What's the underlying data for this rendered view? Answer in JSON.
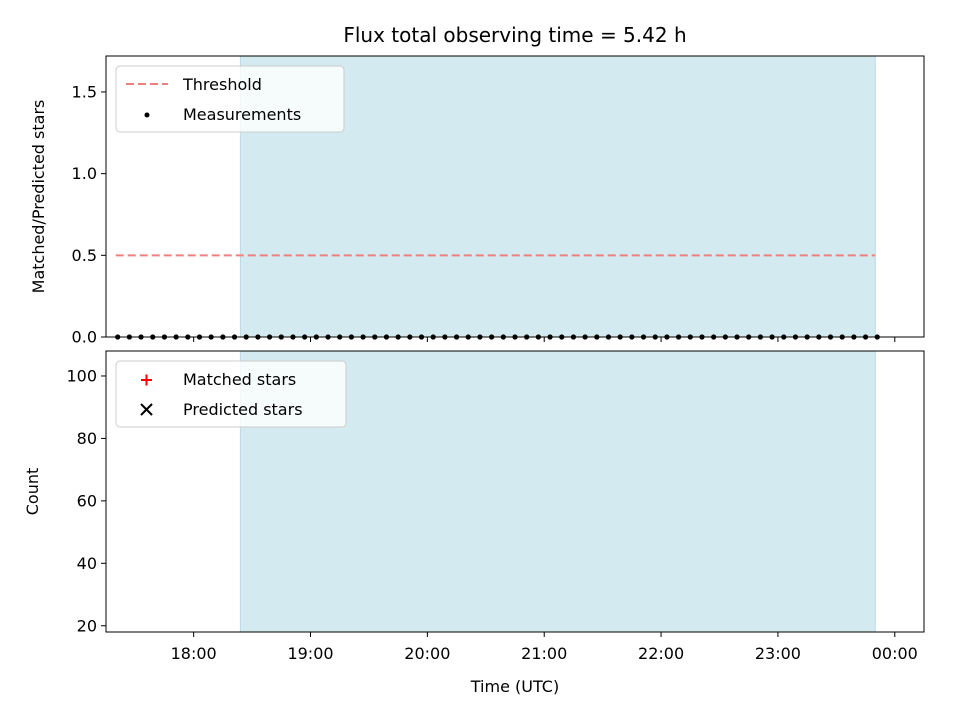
{
  "chart_data": [
    {
      "type": "scatter",
      "title": "Flux total observing time = 5.42 h",
      "xlabel": "",
      "ylabel": "Matched/Predicted stars",
      "xlim": [
        "17:15",
        "00:15"
      ],
      "ylim": [
        0,
        1.72
      ],
      "yticks": [
        "0.0",
        "0.5",
        "1.0",
        "1.5"
      ],
      "grid": false,
      "legend": "top-left",
      "observing_window": [
        "18:24",
        "23:50"
      ],
      "observing_window_color": "#d3eaf0",
      "threshold": {
        "name": "Threshold",
        "value": 0.5,
        "x_range": [
          "17:20",
          "23:50"
        ],
        "color": "#f08080",
        "style": "dashed"
      },
      "series": [
        {
          "name": "Measurements",
          "color": "#000000",
          "marker": "dot",
          "x": [
            "17:21",
            "17:27",
            "17:33",
            "17:39",
            "17:45",
            "17:51",
            "17:57",
            "18:03",
            "18:09",
            "18:15",
            "18:21",
            "18:27",
            "18:33",
            "18:39",
            "18:45",
            "18:51",
            "18:57",
            "19:03",
            "19:09",
            "19:15",
            "19:21",
            "19:27",
            "19:33",
            "19:39",
            "19:45",
            "19:51",
            "19:57",
            "20:03",
            "20:09",
            "20:15",
            "20:21",
            "20:27",
            "20:33",
            "20:39",
            "20:45",
            "20:51",
            "20:57",
            "21:03",
            "21:09",
            "21:15",
            "21:21",
            "21:27",
            "21:33",
            "21:39",
            "21:45",
            "21:51",
            "21:57",
            "22:03",
            "22:09",
            "22:15",
            "22:21",
            "22:27",
            "22:33",
            "22:39",
            "22:45",
            "22:51",
            "22:57",
            "23:03",
            "23:09",
            "23:15",
            "23:21",
            "23:27",
            "23:33",
            "23:39",
            "23:45",
            "23:51"
          ],
          "y": [
            0,
            0,
            0,
            0,
            0,
            0,
            0,
            0,
            0,
            0,
            0,
            0,
            0,
            0,
            0,
            0,
            0,
            0,
            0,
            0,
            0,
            0,
            0,
            0,
            0,
            0,
            0,
            0,
            0,
            0,
            0,
            0,
            0,
            0,
            0,
            0,
            0,
            0,
            0,
            0,
            0,
            0,
            0,
            0,
            0,
            0,
            0,
            0,
            0,
            0,
            0,
            0,
            0,
            0,
            0,
            0,
            0,
            0,
            0,
            0,
            0,
            0,
            0,
            0,
            0,
            0
          ]
        }
      ]
    },
    {
      "type": "scatter",
      "title": "",
      "xlabel": "Time (UTC)",
      "ylabel": "Count",
      "xlim": [
        "17:15",
        "00:15"
      ],
      "ylim": [
        18,
        108
      ],
      "yticks": [
        "20",
        "40",
        "60",
        "80",
        "100"
      ],
      "xticks": [
        "18:00",
        "19:00",
        "20:00",
        "21:00",
        "22:00",
        "23:00",
        "00:00"
      ],
      "grid": false,
      "legend": "top-left",
      "observing_window": [
        "18:24",
        "23:50"
      ],
      "series": [
        {
          "name": "Matched stars",
          "color": "#ff0000",
          "marker": "plus",
          "x": [],
          "y": []
        },
        {
          "name": "Predicted stars",
          "color": "#000000",
          "marker": "x",
          "x": [],
          "y": []
        }
      ]
    }
  ]
}
